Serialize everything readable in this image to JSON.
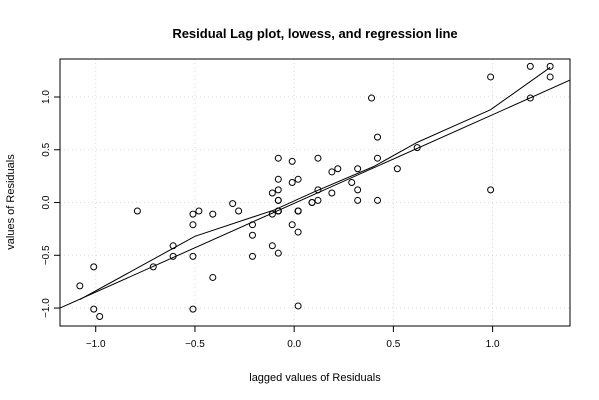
{
  "chart_data": {
    "type": "scatter",
    "title": "Residual Lag plot, lowess, and regression line",
    "xlabel": "lagged values of Residuals",
    "ylabel": "values of Residuals",
    "xlim": [
      -1.18,
      1.39
    ],
    "ylim": [
      -1.17,
      1.36
    ],
    "xticks": [
      -1.0,
      -0.5,
      0.0,
      0.5,
      1.0
    ],
    "xtick_labels": [
      "−1.0",
      "−0.5",
      "0.0",
      "0.5",
      "1.0"
    ],
    "yticks": [
      -1.0,
      -0.5,
      0.0,
      0.5,
      1.0
    ],
    "ytick_labels": [
      "−1.0",
      "−0.5",
      "0.0",
      "0.5",
      "1.0"
    ],
    "grid": true,
    "series": [
      {
        "marker": "open-circle",
        "x": [
          -1.08,
          -1.01,
          -1.01,
          -0.98,
          -0.79,
          -0.71,
          -0.61,
          -0.61,
          -0.51,
          -0.51,
          -0.51,
          -0.51,
          -0.48,
          -0.41,
          -0.41,
          -0.31,
          -0.28,
          -0.21,
          -0.21,
          -0.21,
          -0.11,
          -0.11,
          -0.11,
          -0.08,
          -0.08,
          -0.08,
          -0.08,
          -0.08,
          -0.08,
          -0.08,
          -0.08,
          -0.08,
          -0.01,
          -0.01,
          -0.01,
          0.02,
          0.02,
          0.02,
          0.02,
          0.02,
          0.02,
          0.09,
          0.09,
          0.12,
          0.12,
          0.12,
          0.19,
          0.19,
          0.22,
          0.29,
          0.32,
          0.32,
          0.32,
          0.39,
          0.42,
          0.42,
          0.42,
          0.52,
          0.62,
          0.99,
          0.99,
          1.19,
          1.19,
          1.29,
          1.29
        ],
        "y": [
          -0.79,
          -0.61,
          -1.01,
          -1.08,
          -0.08,
          -0.61,
          -0.51,
          -0.41,
          -0.11,
          -0.21,
          -0.51,
          -1.01,
          -0.08,
          -0.11,
          -0.71,
          -0.01,
          -0.08,
          -0.21,
          -0.31,
          -0.51,
          0.09,
          -0.11,
          -0.41,
          0.42,
          0.22,
          0.12,
          0.02,
          0.02,
          -0.08,
          -0.08,
          -0.48,
          -0.08,
          0.39,
          0.19,
          -0.21,
          0.22,
          -0.08,
          -0.08,
          -0.08,
          -0.28,
          -0.98,
          0.0,
          0.0,
          0.42,
          0.12,
          0.02,
          0.29,
          0.09,
          0.32,
          0.19,
          0.32,
          0.12,
          0.02,
          0.99,
          0.62,
          0.42,
          0.02,
          0.32,
          0.52,
          1.19,
          0.12,
          1.29,
          0.99,
          1.29,
          1.19
        ]
      },
      {
        "marker": "line",
        "x": [
          -1.08,
          -0.5,
          -0.1,
          0.1,
          0.4,
          0.62,
          0.99,
          1.29
        ],
        "y": [
          -0.92,
          -0.32,
          -0.07,
          0.1,
          0.34,
          0.57,
          0.88,
          1.28
        ]
      },
      {
        "marker": "line",
        "x": [
          -1.18,
          1.39
        ],
        "y": [
          -1.0,
          1.16
        ]
      }
    ]
  }
}
